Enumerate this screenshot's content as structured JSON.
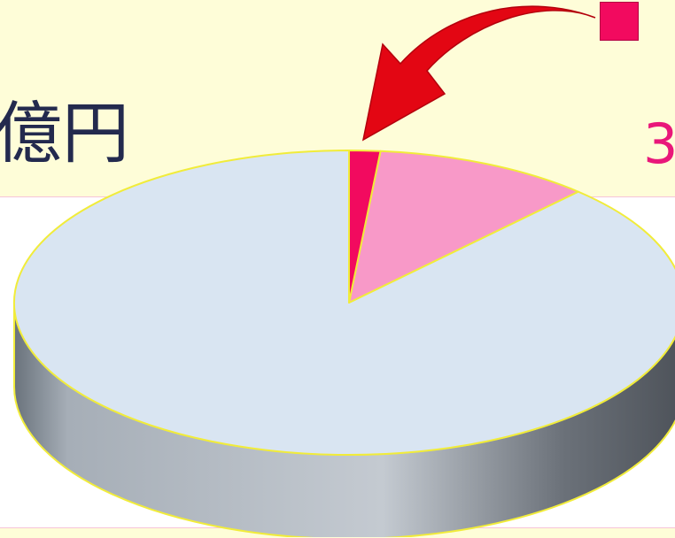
{
  "texts": {
    "title_fragment": "億円",
    "value_fragment": "3",
    "legend_fragment": ""
  },
  "colors": {
    "top_band": "#fefdd8",
    "pie_top": "#d9e5f2",
    "slice_highlight": "#f20a5f",
    "slice_second": "#f899c8",
    "pie_edge": "#f1ec3a",
    "arrow": "#e30613",
    "title_text": "#232a4e",
    "value_text": "#e9177a"
  },
  "chart_data": {
    "type": "pie",
    "style": "3d",
    "slices": [
      {
        "label": "",
        "value": 1.5,
        "color": "#f20a5f"
      },
      {
        "label": "",
        "value": 10.5,
        "color": "#f899c8"
      },
      {
        "label": "",
        "value": 88.0,
        "color": "#d9e5f2"
      }
    ],
    "start_angle_deg": 0,
    "direction": "clockwise",
    "callout_arrow_target": 0
  }
}
